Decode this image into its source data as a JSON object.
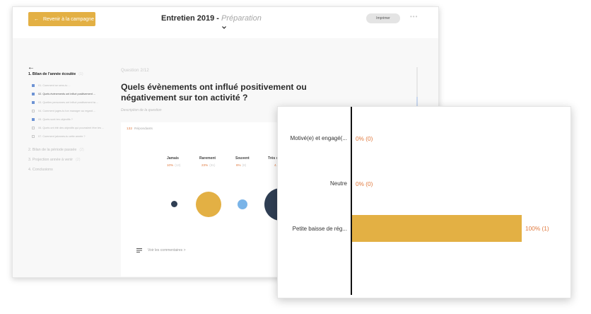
{
  "header": {
    "back_label": "Revenir à la campagne",
    "back_arrow": "←",
    "title": "Entretien 2019 - ",
    "title_sub": "Préparation",
    "print_label": "Imprimer",
    "more_label": "•••"
  },
  "sidebar": {
    "back_arrow": "←",
    "sections": [
      {
        "label": "1. Bilan de l'année écoulée",
        "count": "(1)",
        "active": true
      },
      {
        "label": "2. Bilan de la période passée",
        "count": "(2)",
        "active": false
      },
      {
        "label": "3. Projection année à venir",
        "count": "(2)",
        "active": false
      },
      {
        "label": "4. Conclusions",
        "count": "",
        "active": false
      }
    ],
    "subitems": [
      {
        "label": "01. Comment se sens-tu ...",
        "checked": true
      },
      {
        "label": "02. Quels évènements ont influé positivement ...",
        "checked": true
      },
      {
        "label": "03. Quelles personnes ont influé positivement ta ...",
        "checked": true
      },
      {
        "label": "04. Comment juges-tu ton manager au regard ...",
        "checked": false
      },
      {
        "label": "05. Quels sont tes objectifs ?",
        "checked": true
      },
      {
        "label": "06. Quels ont été des objectifs qui pourraient être tes ...",
        "checked": false
      },
      {
        "label": "07. Comment jalonnes-tu cette année ?",
        "checked": false
      }
    ]
  },
  "question": {
    "label": "Question  2/12",
    "title": "Quels évènements ont influé positivement ou négativement sur ton activité ?",
    "description": "Description de la question"
  },
  "results": {
    "respondents_count": "132",
    "respondents_label": "Répondants",
    "categories": [
      {
        "label": "Jamais",
        "pct": "10%",
        "sub": "(13)",
        "color": "#2f3e53",
        "size_rel": 0.22
      },
      {
        "label": "Rarement",
        "pct": "23%",
        "sub": "(31)",
        "color": "#e3b044",
        "size_rel": 0.78
      },
      {
        "label": "Souvent",
        "pct": "6%",
        "sub": "(8)",
        "color": "#7ab4e8",
        "size_rel": 0.32
      },
      {
        "label": "Très s...",
        "pct": "4...",
        "sub": "",
        "color": "#2f3e53",
        "size_rel": 1.0
      }
    ],
    "comments_label": "Voir les commentaires  >"
  },
  "chart_data": {
    "type": "bar",
    "orientation": "horizontal",
    "categories": [
      "Motivé(e) et engagé(...",
      "Neutre",
      "Petite baisse de rég..."
    ],
    "values": [
      0,
      0,
      100
    ],
    "counts": [
      0,
      0,
      1
    ],
    "value_labels": [
      "0% (0)",
      "0% (0)",
      "100% (1)"
    ],
    "xlim": [
      0,
      100
    ],
    "bar_color": "#e3b044",
    "label_color": "#e07a3f"
  }
}
